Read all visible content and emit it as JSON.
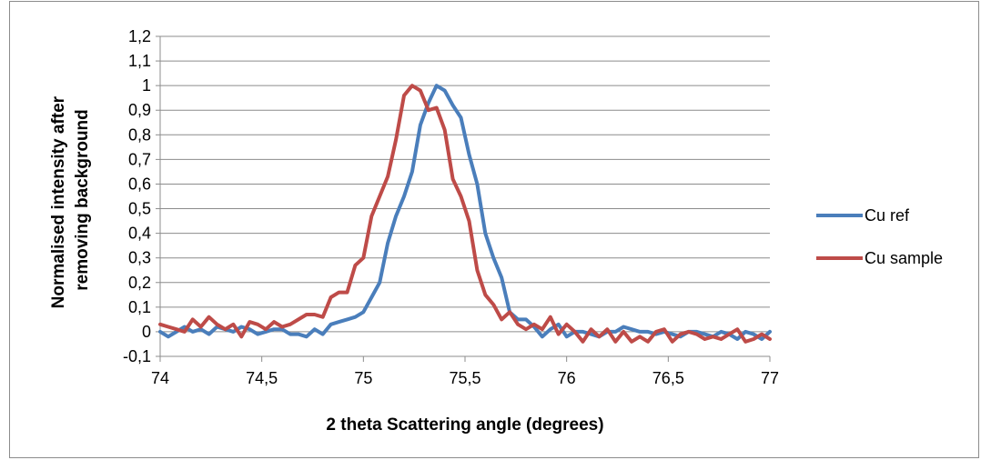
{
  "chart_data": {
    "type": "line",
    "title": "",
    "xlabel": "2 theta Scattering angle (degrees)",
    "ylabel_lines": [
      "Normalised intensity after",
      "removing background"
    ],
    "xlim": [
      74,
      77
    ],
    "ylim": [
      -0.1,
      1.2
    ],
    "x_ticks": [
      74,
      74.5,
      75,
      75.5,
      76,
      76.5,
      77
    ],
    "x_tick_labels": [
      "74",
      "74,5",
      "75",
      "75,5",
      "76",
      "76,5",
      "77"
    ],
    "y_ticks": [
      -0.1,
      0,
      0.1,
      0.2,
      0.3,
      0.4,
      0.5,
      0.6,
      0.7,
      0.8,
      0.9,
      1,
      1.1,
      1.2
    ],
    "y_tick_labels": [
      "-0,1",
      "0",
      "0,1",
      "0,2",
      "0,3",
      "0,4",
      "0,5",
      "0,6",
      "0,7",
      "0,8",
      "0,9",
      "1",
      "1,1",
      "1,2"
    ],
    "grid": "horizontal",
    "legend_position": "right",
    "series": [
      {
        "name": "Cu ref",
        "color": "#4a7ebb",
        "x": [
          74.0,
          74.04,
          74.08,
          74.12,
          74.16,
          74.2,
          74.24,
          74.28,
          74.32,
          74.36,
          74.4,
          74.44,
          74.48,
          74.52,
          74.56,
          74.6,
          74.64,
          74.68,
          74.72,
          74.76,
          74.8,
          74.84,
          74.88,
          74.92,
          74.96,
          75.0,
          75.04,
          75.08,
          75.12,
          75.16,
          75.2,
          75.24,
          75.28,
          75.32,
          75.36,
          75.4,
          75.44,
          75.48,
          75.52,
          75.56,
          75.6,
          75.64,
          75.68,
          75.72,
          75.76,
          75.8,
          75.84,
          75.88,
          75.92,
          75.96,
          76.0,
          76.04,
          76.08,
          76.12,
          76.16,
          76.2,
          76.24,
          76.28,
          76.32,
          76.36,
          76.4,
          76.44,
          76.48,
          76.52,
          76.56,
          76.6,
          76.64,
          76.68,
          76.72,
          76.76,
          76.8,
          76.84,
          76.88,
          76.92,
          76.96,
          77.0
        ],
        "y": [
          0.0,
          -0.02,
          0.0,
          0.02,
          0.0,
          0.01,
          -0.01,
          0.02,
          0.01,
          0.0,
          0.02,
          0.01,
          -0.01,
          0.0,
          0.01,
          0.01,
          -0.01,
          -0.01,
          -0.02,
          0.01,
          -0.01,
          0.03,
          0.04,
          0.05,
          0.06,
          0.08,
          0.14,
          0.2,
          0.36,
          0.47,
          0.55,
          0.65,
          0.84,
          0.93,
          1.0,
          0.98,
          0.92,
          0.87,
          0.72,
          0.6,
          0.4,
          0.3,
          0.22,
          0.08,
          0.05,
          0.05,
          0.02,
          -0.02,
          0.01,
          0.03,
          -0.02,
          0.0,
          0.0,
          -0.01,
          -0.02,
          0.0,
          0.0,
          0.02,
          0.01,
          0.0,
          0.0,
          -0.01,
          0.0,
          -0.01,
          -0.02,
          0.0,
          0.0,
          -0.01,
          -0.02,
          0.0,
          -0.01,
          -0.03,
          0.0,
          -0.01,
          -0.03,
          0.0
        ]
      },
      {
        "name": "Cu sample",
        "color": "#be4b48",
        "x": [
          74.0,
          74.04,
          74.08,
          74.12,
          74.16,
          74.2,
          74.24,
          74.28,
          74.32,
          74.36,
          74.4,
          74.44,
          74.48,
          74.52,
          74.56,
          74.6,
          74.64,
          74.68,
          74.72,
          74.76,
          74.8,
          74.84,
          74.88,
          74.92,
          74.96,
          75.0,
          75.04,
          75.08,
          75.12,
          75.16,
          75.2,
          75.24,
          75.28,
          75.32,
          75.36,
          75.4,
          75.44,
          75.48,
          75.52,
          75.56,
          75.6,
          75.64,
          75.68,
          75.72,
          75.76,
          75.8,
          75.84,
          75.88,
          75.92,
          75.96,
          76.0,
          76.04,
          76.08,
          76.12,
          76.16,
          76.2,
          76.24,
          76.28,
          76.32,
          76.36,
          76.4,
          76.44,
          76.48,
          76.52,
          76.56,
          76.6,
          76.64,
          76.68,
          76.72,
          76.76,
          76.8,
          76.84,
          76.88,
          76.92,
          76.96,
          77.0
        ],
        "y": [
          0.03,
          0.02,
          0.01,
          0.0,
          0.05,
          0.02,
          0.06,
          0.03,
          0.01,
          0.03,
          -0.02,
          0.04,
          0.03,
          0.01,
          0.04,
          0.02,
          0.03,
          0.05,
          0.07,
          0.07,
          0.06,
          0.14,
          0.16,
          0.16,
          0.27,
          0.3,
          0.47,
          0.55,
          0.63,
          0.78,
          0.96,
          1.0,
          0.98,
          0.9,
          0.91,
          0.82,
          0.62,
          0.55,
          0.45,
          0.25,
          0.15,
          0.11,
          0.05,
          0.08,
          0.03,
          0.01,
          0.03,
          0.01,
          0.06,
          -0.01,
          0.03,
          0.0,
          -0.04,
          0.01,
          -0.02,
          0.01,
          -0.04,
          0.0,
          -0.04,
          -0.02,
          -0.04,
          0.0,
          0.01,
          -0.04,
          -0.01,
          0.0,
          -0.01,
          -0.03,
          -0.02,
          -0.03,
          -0.01,
          0.01,
          -0.04,
          -0.03,
          -0.01,
          -0.03
        ]
      }
    ]
  }
}
